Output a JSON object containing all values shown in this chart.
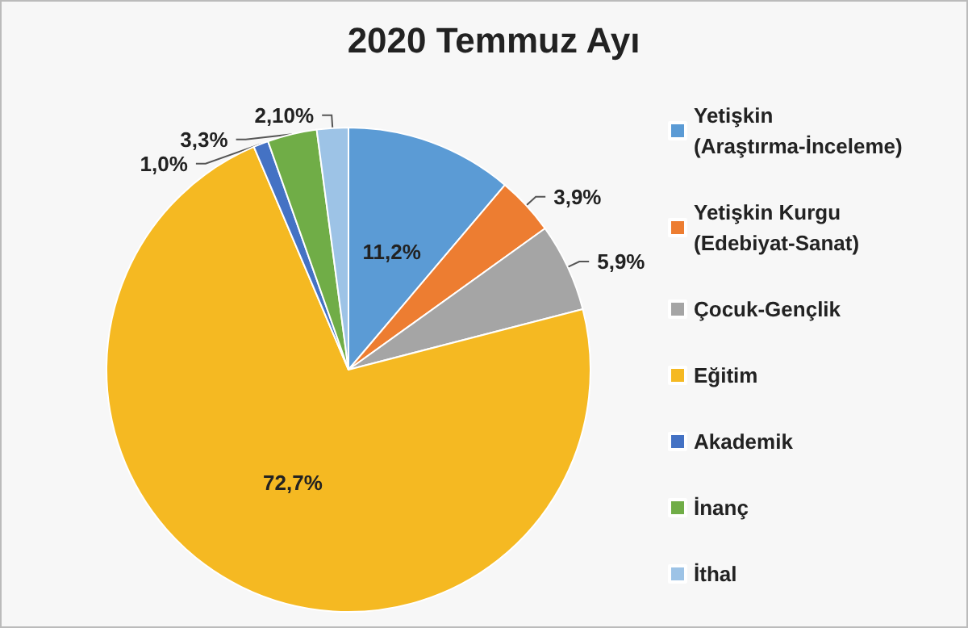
{
  "chart_data": {
    "type": "pie",
    "title": "2020 Temmuz Ayı",
    "categories": [
      "Yetişkin (Araştırma-İnceleme)",
      "Yetişkin Kurgu (Edebiyat-Sanat)",
      "Çocuk-Gençlik",
      "Eğitim",
      "Akademik",
      "İnanç",
      "İthal"
    ],
    "values": [
      11.2,
      3.9,
      5.9,
      72.7,
      1.0,
      3.3,
      2.1
    ],
    "value_labels": [
      "11,2%",
      "3,9%",
      "5,9%",
      "72,7%",
      "1,0%",
      "3,3%",
      "2,10%"
    ],
    "colors": [
      "#5b9bd5",
      "#ed7d31",
      "#a5a5a5",
      "#f5b922",
      "#4472c4",
      "#70ad47",
      "#9dc3e6"
    ],
    "legend": "right"
  }
}
